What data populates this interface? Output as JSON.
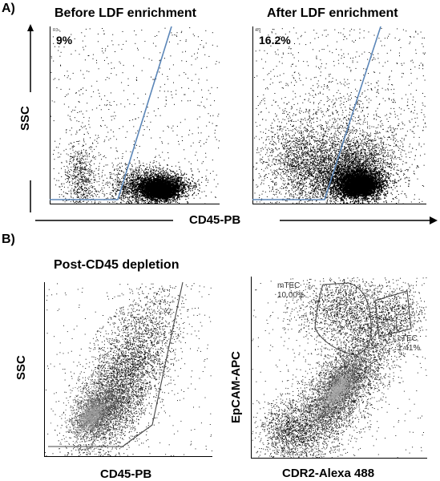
{
  "panel_a": {
    "label": "A)",
    "plot_left": {
      "title": "Before LDF enrichment",
      "gate_id": "R3",
      "gate_percent": "9%"
    },
    "plot_right": {
      "title": "After LDF enrichment",
      "gate_id": "R3",
      "gate_percent": "16.2%"
    },
    "y_axis_label": "SSC",
    "x_axis_label": "CD45-PB"
  },
  "panel_b": {
    "label": "B)",
    "plot_left": {
      "title": "Post-CD45 depletion",
      "y_axis_label": "SSC",
      "x_axis_label": "CD45-PB"
    },
    "plot_right": {
      "y_axis_label": "EpCAM-APC",
      "x_axis_label": "CDR2-Alexa 488",
      "gates": [
        {
          "name": "mTEC",
          "percent": "10.00%"
        },
        {
          "name": "cTEC",
          "percent": "1.41%"
        }
      ]
    }
  },
  "colors": {
    "gate_line": "#5b86b8",
    "gate_polygon": "#444444",
    "dots": "#000000"
  }
}
